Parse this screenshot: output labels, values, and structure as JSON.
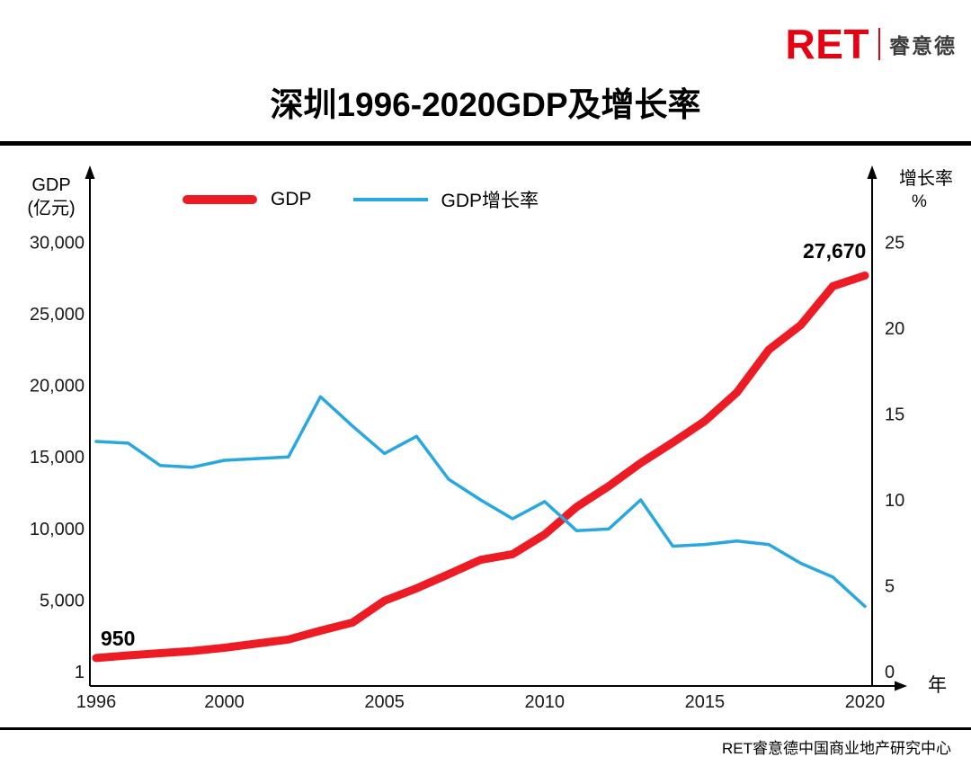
{
  "logo": {
    "brand": "RET",
    "brand_cn": "睿意德",
    "brand_color": "#e60012"
  },
  "title": "深圳1996-2020GDP及增长率",
  "footer": "RET睿意德中国商业地产研究中心",
  "chart_data": {
    "type": "line",
    "title": "深圳1996-2020GDP及增长率",
    "grid": false,
    "legend_position": "top-left",
    "x": [
      1996,
      1997,
      1998,
      1999,
      2000,
      2001,
      2002,
      2003,
      2004,
      2005,
      2006,
      2007,
      2008,
      2009,
      2010,
      2011,
      2012,
      2013,
      2014,
      2015,
      2016,
      2017,
      2018,
      2019,
      2020
    ],
    "series": [
      {
        "name": "GDP",
        "axis": "left",
        "color": "#ed1c24",
        "values": [
          950,
          1130,
          1289,
          1436,
          1665,
          1954,
          2240,
          2860,
          3423,
          4951,
          5814,
          6802,
          7807,
          8201,
          9582,
          11506,
          12950,
          14572,
          16002,
          17503,
          19493,
          22490,
          24222,
          26927,
          27670
        ]
      },
      {
        "name": "GDP增长率",
        "axis": "right",
        "color": "#29a8e0",
        "values": [
          13.4,
          13.3,
          12.0,
          11.9,
          12.3,
          12.4,
          12.5,
          16.0,
          14.3,
          12.7,
          13.7,
          11.2,
          10.0,
          8.9,
          9.9,
          8.2,
          8.3,
          10.0,
          7.3,
          7.4,
          7.6,
          7.4,
          6.3,
          5.5,
          3.8
        ]
      }
    ],
    "left_axis": {
      "title_lines": [
        "GDP",
        "(亿元)"
      ],
      "range": [
        0,
        30000
      ],
      "ticks": [
        {
          "label": "30,000",
          "v": 30000
        },
        {
          "label": "25,000",
          "v": 25000
        },
        {
          "label": "20,000",
          "v": 20000
        },
        {
          "label": "15,000",
          "v": 15000
        },
        {
          "label": "10,000",
          "v": 10000
        },
        {
          "label": "5,000",
          "v": 5000
        },
        {
          "label": "1",
          "v": 1
        }
      ]
    },
    "right_axis": {
      "title_lines": [
        "增长率",
        "%"
      ],
      "range": [
        0,
        25
      ],
      "ticks": [
        {
          "label": "25",
          "v": 25
        },
        {
          "label": "20",
          "v": 20
        },
        {
          "label": "15",
          "v": 15
        },
        {
          "label": "10",
          "v": 10
        },
        {
          "label": "5",
          "v": 5
        },
        {
          "label": "0",
          "v": 0
        }
      ]
    },
    "x_axis": {
      "title": "年",
      "ticks": [
        {
          "label": "1996",
          "v": 1996
        },
        {
          "label": "2000",
          "v": 2000
        },
        {
          "label": "2005",
          "v": 2005
        },
        {
          "label": "2010",
          "v": 2010
        },
        {
          "label": "2015",
          "v": 2015
        },
        {
          "label": "2020",
          "v": 2020
        }
      ]
    },
    "annotations": [
      {
        "text": "950",
        "year": 1996,
        "value": 950,
        "series": "GDP"
      },
      {
        "text": "27,670",
        "year": 2020,
        "value": 27670,
        "series": "GDP"
      }
    ]
  }
}
